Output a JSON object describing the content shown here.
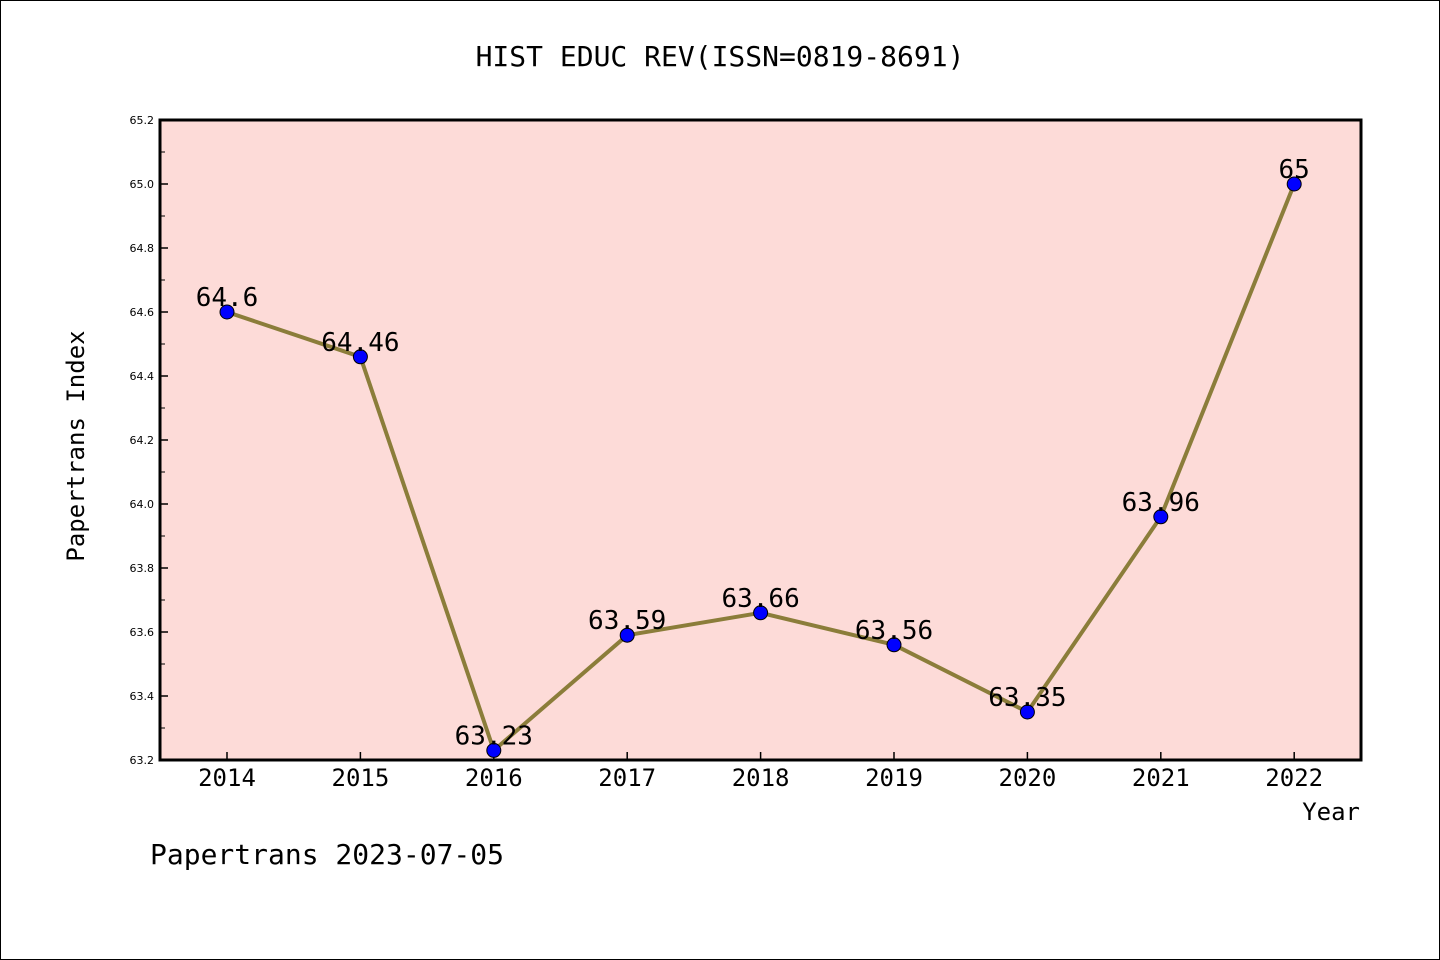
{
  "chart_data": {
    "type": "line",
    "title": "HIST EDUC REV(ISSN=0819-8691)",
    "xlabel": "Year",
    "ylabel": "Papertrans Index",
    "categories": [
      "2014",
      "2015",
      "2016",
      "2017",
      "2018",
      "2019",
      "2020",
      "2021",
      "2022"
    ],
    "series": [
      {
        "values": [
          64.6,
          64.46,
          63.23,
          63.59,
          63.66,
          63.56,
          63.35,
          63.96,
          65.0
        ],
        "labels": [
          "64.6",
          "64.46",
          "63.23",
          "63.59",
          "63.66",
          "63.56",
          "63.35",
          "63.96",
          "65"
        ],
        "line_color": "#8b7d3a",
        "marker_color": "#0000ff"
      }
    ],
    "ylim": [
      63.2,
      65.2
    ],
    "yticks": [
      "63.2",
      "63.4",
      "63.6",
      "63.8",
      "64.0",
      "64.2",
      "64.4",
      "64.6",
      "64.8",
      "65.0",
      "65.2"
    ],
    "plot_background": "#fddbd8",
    "grid": false,
    "footer": "Papertrans 2023-07-05"
  }
}
